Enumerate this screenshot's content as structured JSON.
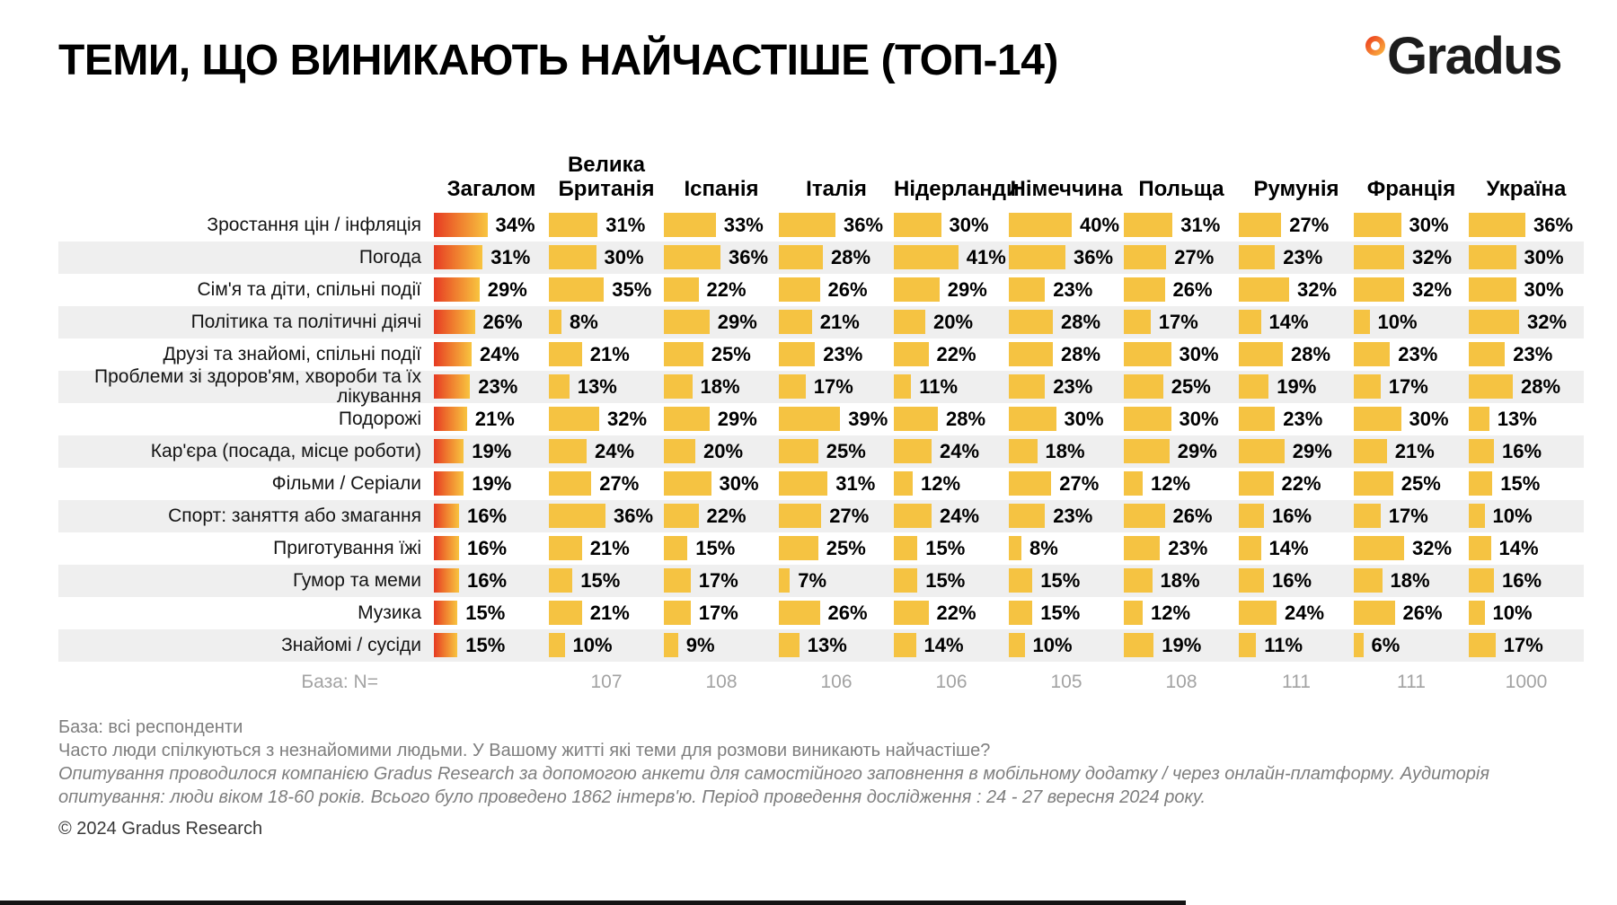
{
  "title": "ТЕМИ, ЩО ВИНИКАЮТЬ НАЙЧАСТІШЕ (ТОП-14)",
  "logo": {
    "text": "Gradus",
    "ring_icon": "degree-ring",
    "accent_color": "#F26A21"
  },
  "colors": {
    "bar_yellow": "#F5C342",
    "bar_gradient_start": "#E63A23",
    "bar_gradient_end": "#F8C43F",
    "row_stripe": "#EFEFEF",
    "muted_text": "#A3A3A3"
  },
  "chart_data": {
    "type": "bar",
    "unit": "%",
    "title": "ТЕМИ, ЩО ВИНИКАЮТЬ НАЙЧАСТІШЕ (ТОП-14)",
    "legend_position": "none",
    "grid": false,
    "value_range": [
      0,
      41
    ],
    "columns": [
      "Загалом",
      "Велика Британія",
      "Іспанія",
      "Італія",
      "Нідерланди",
      "Німеччина",
      "Польща",
      "Румунія",
      "Франція",
      "Україна"
    ],
    "rows": [
      {
        "topic": "Зростання цін / інфляція",
        "values": [
          34,
          31,
          33,
          36,
          30,
          40,
          31,
          27,
          30,
          36
        ]
      },
      {
        "topic": "Погода",
        "values": [
          31,
          30,
          36,
          28,
          41,
          36,
          27,
          23,
          32,
          30
        ]
      },
      {
        "topic": "Сім'я та діти, спільні події",
        "values": [
          29,
          35,
          22,
          26,
          29,
          23,
          26,
          32,
          32,
          30
        ]
      },
      {
        "topic": "Політика та політичні діячі",
        "values": [
          26,
          8,
          29,
          21,
          20,
          28,
          17,
          14,
          10,
          32
        ]
      },
      {
        "topic": "Друзі та знайомі, спільні події",
        "values": [
          24,
          21,
          25,
          23,
          22,
          28,
          30,
          28,
          23,
          23
        ]
      },
      {
        "topic": "Проблеми зі здоров'ям, хвороби та їх лікування",
        "values": [
          23,
          13,
          18,
          17,
          11,
          23,
          25,
          19,
          17,
          28
        ]
      },
      {
        "topic": "Подорожі",
        "values": [
          21,
          32,
          29,
          39,
          28,
          30,
          30,
          23,
          30,
          13
        ]
      },
      {
        "topic": "Кар'єра (посада, місце роботи)",
        "values": [
          19,
          24,
          20,
          25,
          24,
          18,
          29,
          29,
          21,
          16
        ]
      },
      {
        "topic": "Фільми / Серіали",
        "values": [
          19,
          27,
          30,
          31,
          12,
          27,
          12,
          22,
          25,
          15
        ]
      },
      {
        "topic": "Спорт: заняття або змагання",
        "values": [
          16,
          36,
          22,
          27,
          24,
          23,
          26,
          16,
          17,
          10
        ]
      },
      {
        "topic": "Приготування їжі",
        "values": [
          16,
          21,
          15,
          25,
          15,
          8,
          23,
          14,
          32,
          14
        ]
      },
      {
        "topic": "Гумор та меми",
        "values": [
          16,
          15,
          17,
          7,
          15,
          15,
          18,
          16,
          18,
          16
        ]
      },
      {
        "topic": "Музика",
        "values": [
          15,
          21,
          17,
          26,
          22,
          15,
          12,
          24,
          26,
          10
        ]
      },
      {
        "topic": "Знайомі / сусіди",
        "values": [
          15,
          10,
          9,
          13,
          14,
          10,
          19,
          11,
          6,
          17
        ]
      }
    ],
    "base_row": {
      "label": "База: N=",
      "values": [
        "",
        "107",
        "108",
        "106",
        "106",
        "105",
        "108",
        "111",
        "111",
        "1000"
      ]
    }
  },
  "footer": {
    "base_note": "База: всі респонденти",
    "question": "Часто люди спілкуються з незнайомими людьми. У Вашому житті які теми для розмови виникають найчастіше?",
    "methodology": "Опитування проводилося компанією Gradus Research за допомогою анкети для самостійного заповнення в мобільному додатку / через онлайн-платформу. Аудиторія опитування: люди віком 18-60 років. Всього було проведено 1862 інтерв'ю. Період проведення дослідження : 24 - 27 вересня 2024 року.",
    "copyright": "© 2024 Gradus Research"
  }
}
